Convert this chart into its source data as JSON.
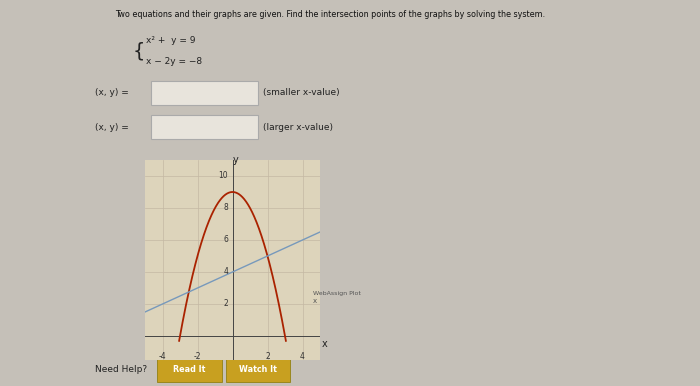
{
  "title_text": "Two equations and their graphs are given. Find the intersection points of the graphs by solving the system.",
  "eq_line1": "x² +  y = 9",
  "eq_line2": "x − 2y = −8",
  "input_label": "(x, y) =",
  "label_smaller": "(smaller x-value)",
  "label_larger": "(larger x-value)",
  "webassign_label": "WebAssign Plot",
  "x_label": "x",
  "y_label": "y",
  "need_help": "Need Help?",
  "btn1": "Read It",
  "btn2": "Watch It",
  "xlim": [
    -5,
    5
  ],
  "ylim": [
    -1.5,
    11
  ],
  "xticks": [
    -4,
    -2,
    2,
    4
  ],
  "yticks": [
    2,
    4,
    6,
    8,
    10
  ],
  "parabola_color": "#aa2200",
  "line_color": "#7799bb",
  "plot_bg": "#ddd4bb",
  "page_bg": "#d0cbc2",
  "outer_bg": "#c5c0b8",
  "title_color": "#111111",
  "text_color": "#222222",
  "axis_color": "#444444",
  "grid_color": "#c4b8a4",
  "input_box_color": "#e8e4dc",
  "input_box_edge": "#aaaaaa",
  "btn_bg": "#c8a020",
  "btn_text": "#ffffff",
  "tick_color": "#333333",
  "wa_text_color": "#555555"
}
